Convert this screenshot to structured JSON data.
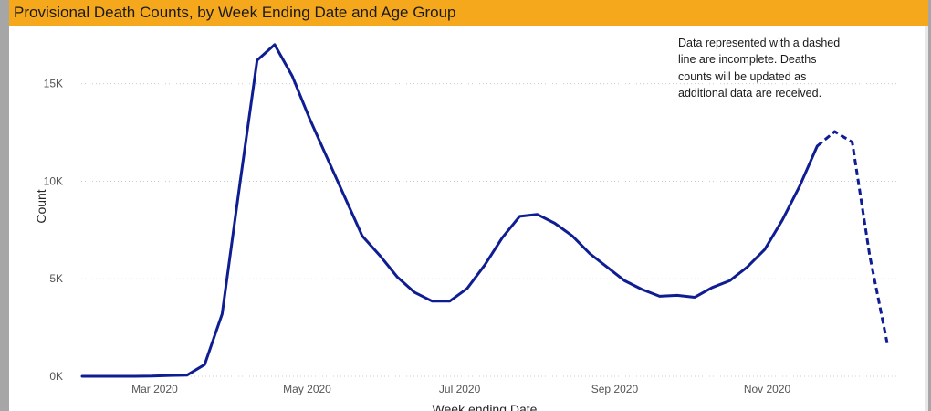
{
  "header": {
    "title": "Provisional Death Counts, by Week Ending Date and Age Group"
  },
  "annotation": "Data represented with a dashed line are incomplete. Deaths counts will be updated as additional data are received.",
  "colors": {
    "title_bar": "#f5a81c",
    "line": "#0f1d93",
    "gridline": "#cccccc"
  },
  "chart_data": {
    "type": "line",
    "title": "Provisional Death Counts, by Week Ending Date and Age Group",
    "xlabel": "Week ending Date",
    "ylabel": "Count",
    "x_ticks": [
      "Mar 2020",
      "May 2020",
      "Jul 2020",
      "Sep 2020",
      "Nov 2020"
    ],
    "y_ticks": [
      "0K",
      "5K",
      "10K",
      "15K"
    ],
    "ylim": [
      0,
      17700
    ],
    "grid": "horizontal dotted",
    "legend": "none",
    "series": [
      {
        "style": "solid",
        "points": [
          [
            "2020-02-01",
            0
          ],
          [
            "2020-02-08",
            0
          ],
          [
            "2020-02-15",
            0
          ],
          [
            "2020-02-22",
            0
          ],
          [
            "2020-02-29",
            10
          ],
          [
            "2020-03-07",
            40
          ],
          [
            "2020-03-14",
            60
          ],
          [
            "2020-03-21",
            600
          ],
          [
            "2020-03-28",
            3200
          ],
          [
            "2020-04-04",
            9800
          ],
          [
            "2020-04-11",
            16200
          ],
          [
            "2020-04-18",
            17000
          ],
          [
            "2020-04-25",
            15400
          ],
          [
            "2020-05-02",
            13200
          ],
          [
            "2020-05-09",
            11200
          ],
          [
            "2020-05-16",
            9200
          ],
          [
            "2020-05-23",
            7200
          ],
          [
            "2020-05-30",
            6200
          ],
          [
            "2020-06-06",
            5100
          ],
          [
            "2020-06-13",
            4300
          ],
          [
            "2020-06-20",
            3850
          ],
          [
            "2020-06-27",
            3850
          ],
          [
            "2020-07-04",
            4500
          ],
          [
            "2020-07-11",
            5700
          ],
          [
            "2020-07-18",
            7100
          ],
          [
            "2020-07-25",
            8200
          ],
          [
            "2020-08-01",
            8300
          ],
          [
            "2020-08-08",
            7850
          ],
          [
            "2020-08-15",
            7200
          ],
          [
            "2020-08-22",
            6300
          ],
          [
            "2020-08-29",
            5600
          ],
          [
            "2020-09-05",
            4900
          ],
          [
            "2020-09-12",
            4450
          ],
          [
            "2020-09-19",
            4100
          ],
          [
            "2020-09-26",
            4150
          ],
          [
            "2020-10-03",
            4050
          ],
          [
            "2020-10-10",
            4550
          ],
          [
            "2020-10-17",
            4900
          ],
          [
            "2020-10-24",
            5600
          ],
          [
            "2020-10-31",
            6500
          ],
          [
            "2020-11-07",
            8000
          ],
          [
            "2020-11-14",
            9750
          ],
          [
            "2020-11-21",
            11800
          ]
        ]
      },
      {
        "style": "dashed",
        "points": [
          [
            "2020-11-21",
            11800
          ],
          [
            "2020-11-28",
            12550
          ],
          [
            "2020-12-05",
            12000
          ],
          [
            "2020-12-12",
            6200
          ],
          [
            "2020-12-19",
            1700
          ]
        ]
      }
    ]
  }
}
